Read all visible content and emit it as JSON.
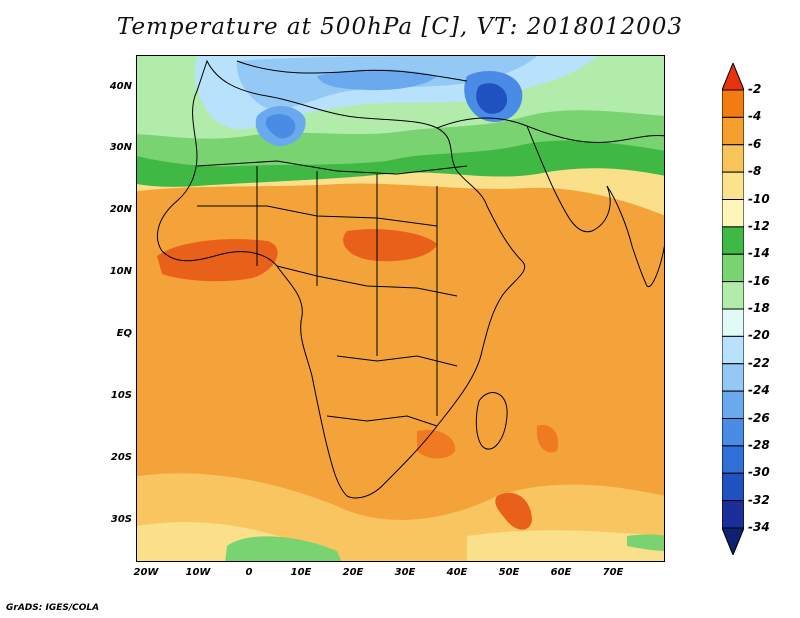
{
  "title": "Temperature at 500hPa [C], VT: 2018012003",
  "credit": "GrADS: IGES/COLA",
  "map": {
    "lat_labels": [
      "40N",
      "30N",
      "20N",
      "10N",
      "EQ",
      "10S",
      "20S",
      "30S"
    ],
    "lon_labels": [
      "20W",
      "10W",
      "0",
      "10E",
      "20E",
      "30E",
      "40E",
      "50E",
      "60E",
      "70E"
    ],
    "lon_range": [
      "20W",
      "80E"
    ],
    "lat_range": [
      "37S",
      "45N"
    ]
  },
  "colorbar": {
    "labels": [
      "-2",
      "-4",
      "-6",
      "-8",
      "-10",
      "-12",
      "-14",
      "-16",
      "-18",
      "-20",
      "-22",
      "-24",
      "-26",
      "-28",
      "-30",
      "-32",
      "-34"
    ],
    "colors": [
      "#e8330c",
      "#f47a12",
      "#f5a02e",
      "#f7c45a",
      "#fae38c",
      "#fdf6b8",
      "#40b844",
      "#78d370",
      "#b2ecab",
      "#e0fbf6",
      "#b8e2fb",
      "#94c9f5",
      "#6ba9ef",
      "#4a8be6",
      "#2e6fd8",
      "#1f52c0",
      "#1a2f9a",
      "#102070"
    ]
  }
}
